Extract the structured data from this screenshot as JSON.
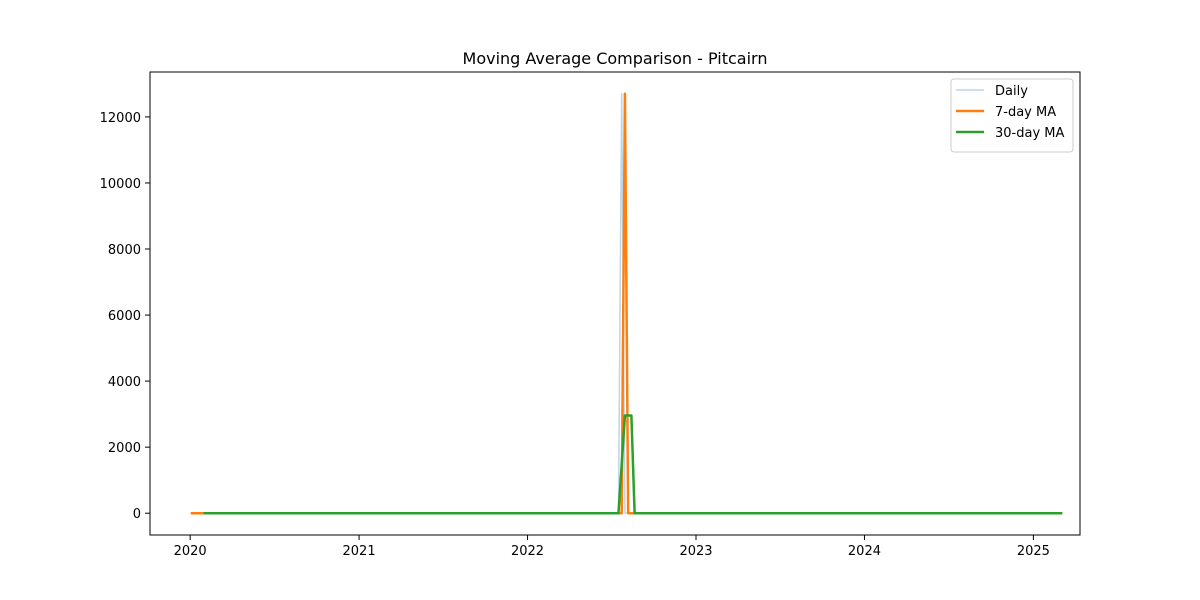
{
  "chart_data": {
    "type": "line",
    "title": "Moving Average Comparison - Pitcairn",
    "xlabel": "",
    "ylabel": "",
    "x_axis": {
      "type": "date",
      "range": [
        "2019-10-06",
        "2025-04-12"
      ],
      "ticks": [
        "2020-01-01",
        "2021-01-01",
        "2022-01-01",
        "2023-01-01",
        "2024-01-01",
        "2025-01-01"
      ],
      "tick_labels": [
        "2020",
        "2021",
        "2022",
        "2023",
        "2024",
        "2025"
      ]
    },
    "y_axis": {
      "range": [
        -660,
        13360
      ],
      "ticks": [
        0,
        2000,
        4000,
        6000,
        8000,
        10000,
        12000
      ],
      "tick_labels": [
        "0",
        "2000",
        "4000",
        "6000",
        "8000",
        "10000",
        "12000"
      ]
    },
    "grid": false,
    "legend": {
      "placement": "top-right",
      "entries": [
        "Daily",
        "7-day MA",
        "30-day MA"
      ]
    },
    "series": [
      {
        "name": "Daily",
        "color": "#1f77b4",
        "opacity": 0.3,
        "line_width": 1.5,
        "points": [
          [
            "2020-01-05",
            0
          ],
          [
            "2022-07-17",
            0
          ],
          [
            "2022-07-24",
            12700
          ],
          [
            "2022-07-31",
            0
          ],
          [
            "2025-03-02",
            0
          ]
        ]
      },
      {
        "name": "7-day MA",
        "color": "#ff7f0e",
        "opacity": 1,
        "line_width": 2.5,
        "points": [
          [
            "2020-01-05",
            0
          ],
          [
            "2022-07-17",
            0
          ],
          [
            "2022-07-24",
            0
          ],
          [
            "2022-07-31",
            12700
          ],
          [
            "2022-08-07",
            0
          ],
          [
            "2025-03-02",
            0
          ]
        ]
      },
      {
        "name": "30-day MA",
        "color": "#2ca02c",
        "opacity": 1,
        "line_width": 2.5,
        "points": [
          [
            "2020-02-02",
            0
          ],
          [
            "2022-07-17",
            0
          ],
          [
            "2022-07-31",
            2960
          ],
          [
            "2022-08-14",
            2960
          ],
          [
            "2022-08-21",
            0
          ],
          [
            "2025-03-02",
            0
          ]
        ]
      }
    ]
  }
}
